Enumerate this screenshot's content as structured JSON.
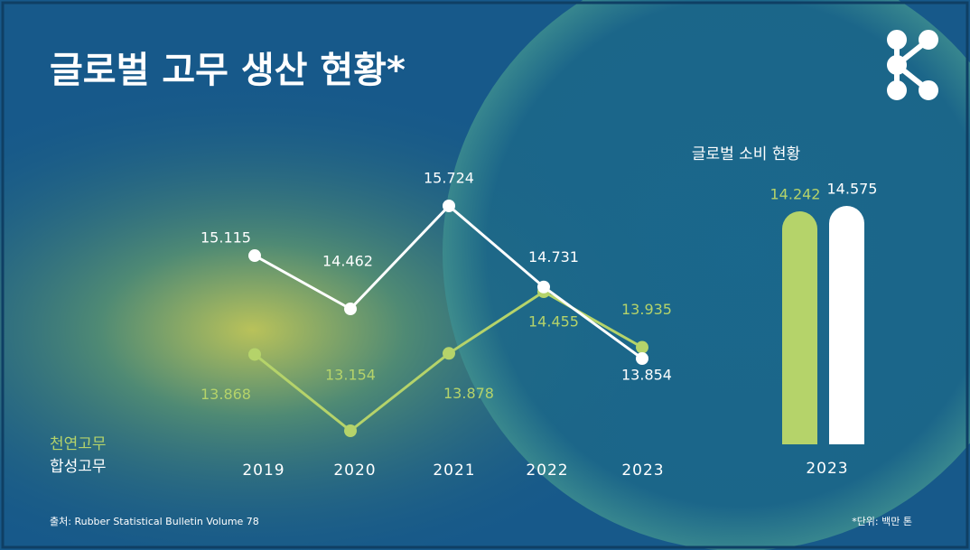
{
  "title": "글로벌 고무 생산 현황*",
  "source": "출처: Rubber Statistical Bulletin Volume 78",
  "unit_note": "*단위: 백만 톤",
  "chart_data": [
    {
      "type": "line",
      "categories": [
        "2019",
        "2020",
        "2021",
        "2022",
        "2023"
      ],
      "series": [
        {
          "name": "천연고무",
          "color": "#b5d36a",
          "values": [
            13.868,
            13.154,
            13.878,
            14.455,
            13.935
          ]
        },
        {
          "name": "합성고무",
          "color": "#ffffff",
          "values": [
            15.115,
            14.462,
            15.724,
            14.731,
            13.854
          ]
        }
      ]
    },
    {
      "type": "bar",
      "title": "글로벌 소비 현황",
      "categories": [
        "2023"
      ],
      "series": [
        {
          "name": "천연고무",
          "color": "#b5d36a",
          "values": [
            14.242
          ]
        },
        {
          "name": "합성고무",
          "color": "#ffffff",
          "values": [
            14.575
          ]
        }
      ]
    }
  ]
}
